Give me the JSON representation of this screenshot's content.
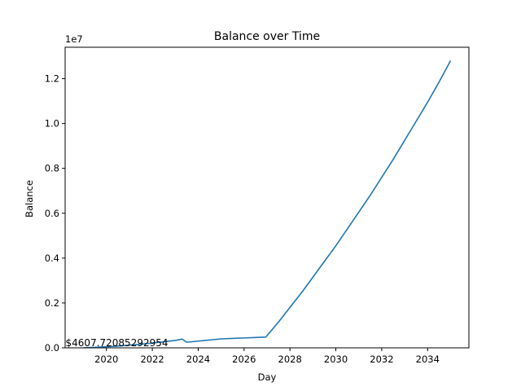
{
  "chart_data": {
    "type": "line",
    "title": "Balance over Time",
    "xlabel": "Day",
    "ylabel": "Balance",
    "y_offset_label": "1e7",
    "xlim": [
      2018.2,
      2035.8
    ],
    "ylim": [
      0,
      13400000
    ],
    "x_ticks": [
      2020,
      2022,
      2024,
      2026,
      2028,
      2030,
      2032,
      2034
    ],
    "x_tick_labels": [
      "2020",
      "2022",
      "2024",
      "2026",
      "2028",
      "2030",
      "2032",
      "2034"
    ],
    "y_ticks": [
      0,
      2000000,
      4000000,
      6000000,
      8000000,
      10000000,
      12000000
    ],
    "y_tick_labels": [
      "0.0",
      "0.2",
      "0.4",
      "0.6",
      "0.8",
      "1.0",
      "1.2"
    ],
    "grid": false,
    "series": [
      {
        "color": "#1f77b4",
        "x": [
          2019.0,
          2019.5,
          2020.0,
          2020.5,
          2021.0,
          2021.5,
          2022.0,
          2022.5,
          2023.0,
          2023.3,
          2023.5,
          2024.0,
          2024.5,
          2025.0,
          2025.5,
          2026.0,
          2026.5,
          2026.95,
          2027.5,
          2028.0,
          2028.5,
          2029.0,
          2029.5,
          2030.0,
          2030.5,
          2031.0,
          2031.5,
          2032.0,
          2032.5,
          2033.0,
          2033.5,
          2034.0,
          2034.5,
          2035.0
        ],
        "y": [
          4607.72,
          20000,
          50000,
          80000,
          120000,
          160000,
          210000,
          270000,
          330000,
          390000,
          250000,
          300000,
          350000,
          400000,
          420000,
          440000,
          460000,
          480000,
          1150000,
          1800000,
          2450000,
          3150000,
          3850000,
          4550000,
          5300000,
          6050000,
          6800000,
          7600000,
          8400000,
          9250000,
          10100000,
          10950000,
          11850000,
          12800000
        ]
      }
    ],
    "annotations": [
      {
        "text": "$4607.72085292954",
        "x": 2019.0,
        "y": 4607.72
      }
    ]
  }
}
